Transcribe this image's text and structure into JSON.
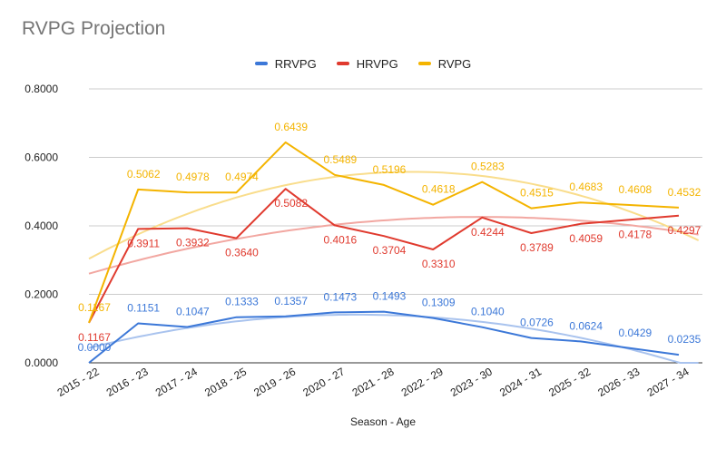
{
  "chart_data": {
    "type": "line",
    "title": "RVPG Projection",
    "xlabel": "Season - Age",
    "ylabel": "",
    "ylim": [
      0,
      0.8
    ],
    "yticks": [
      "0.0000",
      "0.2000",
      "0.4000",
      "0.6000",
      "0.8000"
    ],
    "grid": true,
    "legend_position": "top-center",
    "categories": [
      "2015 - 22",
      "2016 - 23",
      "2017 - 24",
      "2018 - 25",
      "2019 - 26",
      "2020 - 27",
      "2021 - 28",
      "2022 - 29",
      "2023 - 30",
      "2024 - 31",
      "2025 - 32",
      "2026 - 33",
      "2027 - 34"
    ],
    "series": [
      {
        "name": "RRVPG",
        "color": "#3c78d8",
        "trend_color": "#a9c3ee",
        "values": [
          0.0,
          0.1151,
          0.1047,
          0.1333,
          0.1357,
          0.1473,
          0.1493,
          0.1309,
          0.104,
          0.0726,
          0.0624,
          0.0429,
          0.0235
        ],
        "labels": [
          "0.0000",
          "0.1151",
          "0.1047",
          "0.1333",
          "0.1357",
          "0.1473",
          "0.1493",
          "0.1309",
          "0.1040",
          "0.0726",
          "0.0624",
          "0.0429",
          "0.0235"
        ],
        "label_position": "above"
      },
      {
        "name": "HRVPG",
        "color": "#e03a2e",
        "trend_color": "#f2a7a1",
        "values": [
          0.1167,
          0.3911,
          0.3932,
          0.364,
          0.5082,
          0.4016,
          0.3704,
          0.331,
          0.4244,
          0.3789,
          0.4059,
          0.4178,
          0.4297
        ],
        "labels": [
          "0.1167",
          "0.3911",
          "0.3932",
          "0.3640",
          "0.5082",
          "0.4016",
          "0.3704",
          "0.3310",
          "0.4244",
          "0.3789",
          "0.4059",
          "0.4178",
          "0.4297"
        ],
        "label_position": "below"
      },
      {
        "name": "RVPG",
        "color": "#f4b400",
        "trend_color": "#f9dd8c",
        "values": [
          0.1167,
          0.5062,
          0.4978,
          0.4974,
          0.6439,
          0.5489,
          0.5196,
          0.4618,
          0.5283,
          0.4515,
          0.4683,
          0.4608,
          0.4532
        ],
        "labels": [
          "0.1167",
          "0.5062",
          "0.4978",
          "0.4974",
          "0.6439",
          "0.5489",
          "0.5196",
          "0.4618",
          "0.5283",
          "0.4515",
          "0.4683",
          "0.4608",
          "0.4532"
        ],
        "label_position": "above"
      }
    ]
  }
}
